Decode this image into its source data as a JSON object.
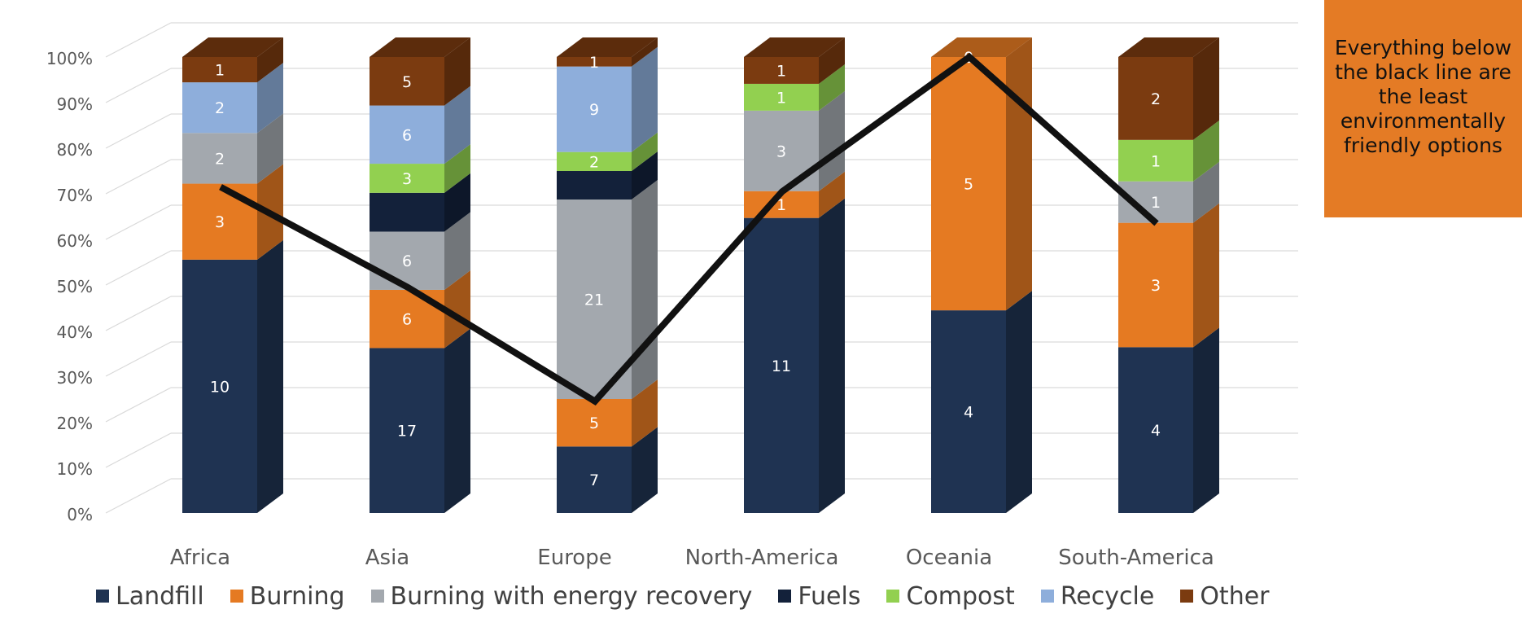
{
  "chart_data": {
    "type": "bar",
    "stacked": "percent",
    "three_d": true,
    "categories": [
      "Africa",
      "Asia",
      "Europe",
      "North-America",
      "Oceania",
      "South-America"
    ],
    "series": [
      {
        "name": "Landfill",
        "color": "#1F3352",
        "values": [
          10,
          17,
          7,
          11,
          4,
          4
        ]
      },
      {
        "name": "Burning",
        "color": "#E57A22",
        "values": [
          3,
          6,
          5,
          1,
          5,
          3
        ]
      },
      {
        "name": "Burning with energy recovery",
        "color": "#A3A8AE",
        "values": [
          2,
          6,
          21,
          3,
          0,
          1
        ]
      },
      {
        "name": "Fuels",
        "color": "#13213A",
        "values": [
          0,
          4,
          3,
          0,
          0,
          0
        ]
      },
      {
        "name": "Compost",
        "color": "#92D050",
        "values": [
          0,
          3,
          2,
          1,
          0,
          1
        ]
      },
      {
        "name": "Recycle",
        "color": "#8EAEDB",
        "values": [
          2,
          6,
          9,
          0,
          0,
          0
        ]
      },
      {
        "name": "Other",
        "color": "#7B3B10",
        "values": [
          1,
          5,
          1,
          1,
          0,
          2
        ]
      }
    ],
    "data_labels": [
      [
        "10",
        "3",
        "2",
        "",
        "",
        "2",
        "1"
      ],
      [
        "17",
        "6",
        "6",
        "",
        "3",
        "6",
        "5"
      ],
      [
        "7",
        "5",
        "21",
        "",
        "2",
        "9",
        "1"
      ],
      [
        "11",
        "1",
        "3",
        "",
        "1",
        "",
        "1"
      ],
      [
        "4",
        "5",
        "",
        "",
        "",
        "",
        "0"
      ],
      [
        "4",
        "3",
        "1",
        "",
        "1",
        "",
        "2"
      ]
    ],
    "y_ticks": [
      "0%",
      "10%",
      "20%",
      "30%",
      "40%",
      "50%",
      "60%",
      "70%",
      "80%",
      "90%",
      "100%"
    ],
    "ylim": [
      0,
      100
    ],
    "grid": true,
    "legend_position": "bottom",
    "threshold_line": {
      "color": "#111111",
      "values": [
        71.5,
        49.5,
        24.5,
        70.5,
        100,
        63.5
      ]
    }
  },
  "annotation": {
    "text": "Everything below the black line are the least environmentally friendly options",
    "background": "#E47B25"
  }
}
